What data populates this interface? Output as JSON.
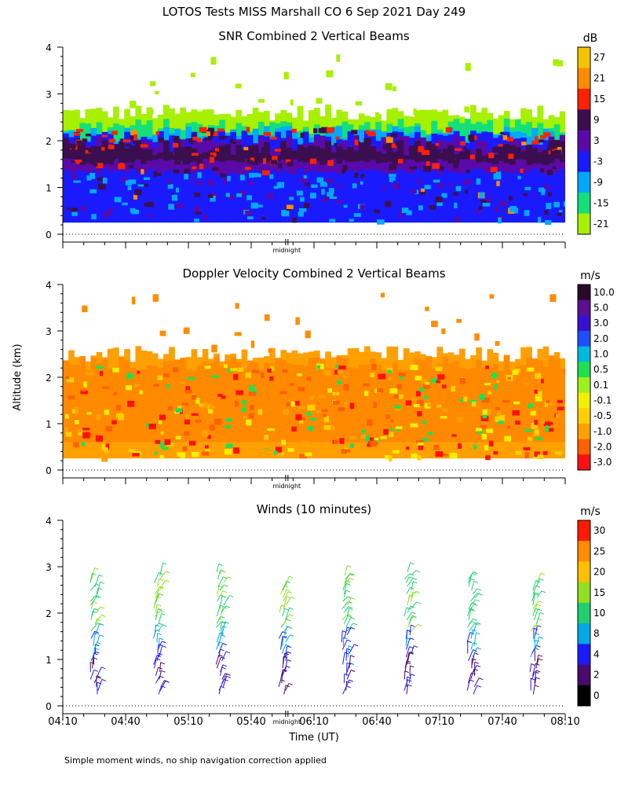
{
  "title": "LOTOS Tests MISS Marshall CO   6 Sep 2021 Day 249",
  "ylabel": "Altitude (km)",
  "xlabel": "Time (UT)",
  "footnote": "Simple moment winds, no ship navigation correction applied",
  "midnight_label": "midnight",
  "x_ticks": [
    "04:10",
    "04:40",
    "05:10",
    "05:40",
    "06:10",
    "06:40",
    "07:10",
    "07:40",
    "08:10"
  ],
  "chart_data": [
    {
      "type": "heatmap",
      "title": "SNR Combined 2 Vertical Beams",
      "units": "dB",
      "x_range": [
        "04:10",
        "08:10"
      ],
      "ylim": [
        0,
        4
      ],
      "y_ticks": [
        "0",
        "1",
        "2",
        "3",
        "4"
      ],
      "colorbar_labels": [
        "27",
        "21",
        "15",
        "9",
        "3",
        "-3",
        "-9",
        "-15",
        "-21"
      ],
      "colorbar_colors": [
        "#f5c400",
        "#ff8c00",
        "#ff2200",
        "#3b0f4f",
        "#5a0aa8",
        "#1a1aff",
        "#00a8ff",
        "#14e07a",
        "#a6f000"
      ],
      "layers": [
        {
          "label": "-15 to -21 dB, 0.25-2.6 km",
          "color": "#a6f000",
          "y_bottom": 0.25,
          "y_top": 2.6
        },
        {
          "label": "-9 to -15 dB",
          "color": "#14e07a",
          "y_bottom": 0.25,
          "y_top": 2.3
        },
        {
          "label": "-3 to -9 dB",
          "color": "#00a8ff",
          "y_bottom": 0.25,
          "y_top": 2.15
        },
        {
          "label": "3 to -3 dB",
          "color": "#1a1aff",
          "y_bottom": 0.25,
          "y_top": 2.05
        },
        {
          "label": "9 to 3 dB layer",
          "color": "#5a0aa8",
          "y_bottom": 1.35,
          "y_top": 1.95
        },
        {
          "label": "9 to 15 dB layer",
          "color": "#3b0f4f",
          "y_bottom": 1.55,
          "y_top": 1.85
        }
      ]
    },
    {
      "type": "heatmap",
      "title": "Doppler Velocity Combined 2 Vertical Beams",
      "units": "m/s",
      "x_range": [
        "04:10",
        "08:10"
      ],
      "ylim": [
        0,
        4
      ],
      "y_ticks": [
        "0",
        "1",
        "2",
        "3",
        "4"
      ],
      "colorbar_labels": [
        "10.0",
        "5.0",
        "3.0",
        "2.0",
        "1.0",
        "0.5",
        "0.1",
        "-0.1",
        "-0.5",
        "-1.0",
        "-2.0",
        "-3.0"
      ],
      "colorbar_colors": [
        "#2a0a2a",
        "#5a1090",
        "#3a10d0",
        "#1a50ff",
        "#00b8e0",
        "#20e050",
        "#a0f020",
        "#f0f000",
        "#ffd000",
        "#ffa000",
        "#ff6000",
        "#ff1010"
      ],
      "layers": [
        {
          "label": "-0.5 to -1.0 m/s dominant",
          "color": "#ffa000",
          "y_bottom": 0.25,
          "y_top": 2.5
        },
        {
          "label": "-1.0 to -2.0 m/s patches",
          "color": "#ff8a00",
          "y_bottom": 0.6,
          "y_top": 2.3
        }
      ]
    },
    {
      "type": "wind_barbs",
      "title": "Winds (10 minutes)",
      "units": "m/s",
      "x_range": [
        "04:10",
        "08:10"
      ],
      "ylim": [
        0,
        4
      ],
      "y_ticks": [
        "0",
        "1",
        "2",
        "3",
        "4"
      ],
      "colorbar_labels": [
        "30",
        "25",
        "20",
        "15",
        "10",
        "8",
        "4",
        "2",
        "0"
      ],
      "colorbar_colors": [
        "#ff1a00",
        "#ff8c00",
        "#ffc000",
        "#90e020",
        "#20d070",
        "#00a8e8",
        "#1a1aff",
        "#4a0a70",
        "#000000"
      ],
      "profiles": [
        {
          "time": "04:25",
          "top_km": 2.75
        },
        {
          "time": "04:55",
          "top_km": 2.85
        },
        {
          "time": "05:25",
          "top_km": 2.9
        },
        {
          "time": "05:55",
          "top_km": 2.6
        },
        {
          "time": "06:25",
          "top_km": 2.85
        },
        {
          "time": "06:55",
          "top_km": 2.9
        },
        {
          "time": "07:25",
          "top_km": 2.8
        },
        {
          "time": "07:55",
          "top_km": 2.7
        }
      ]
    }
  ]
}
